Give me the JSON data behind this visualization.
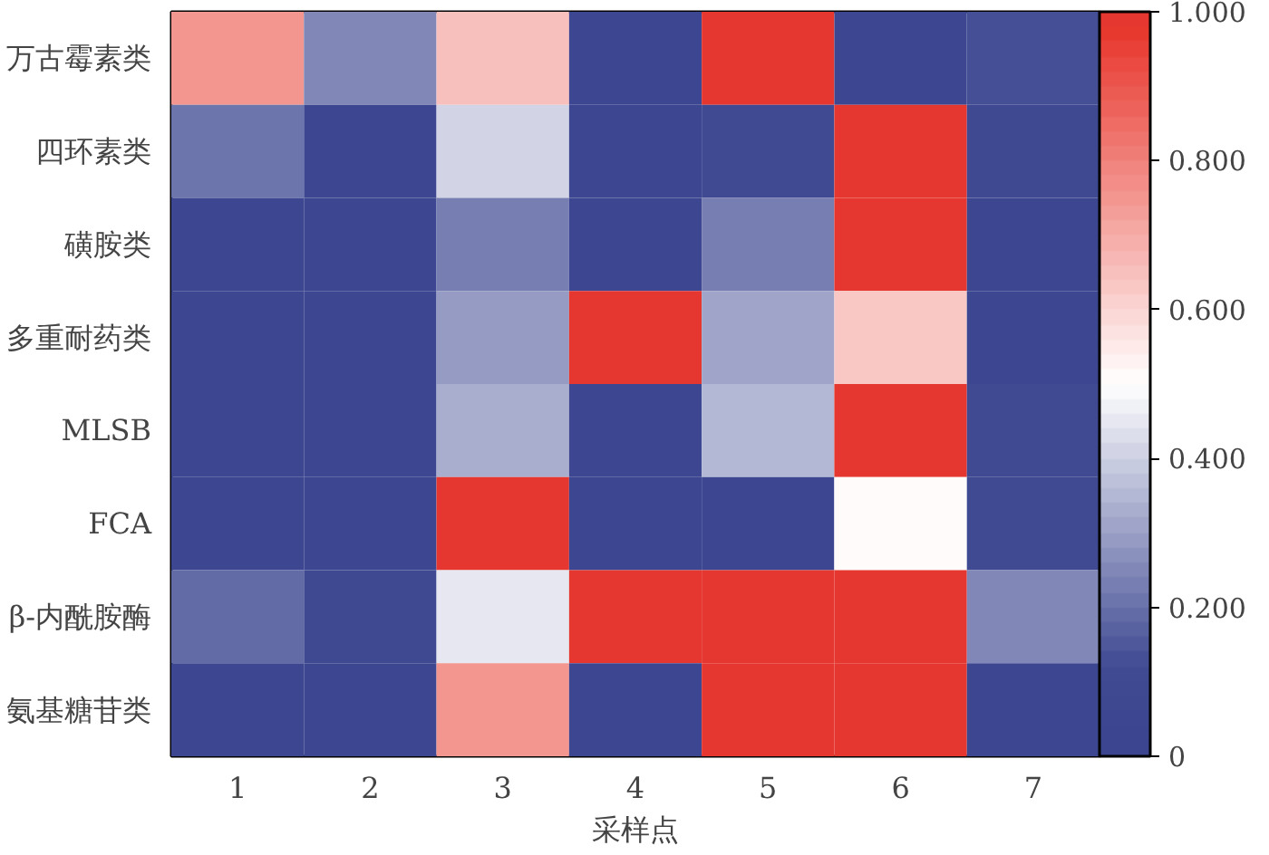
{
  "chart_data": {
    "type": "heatmap",
    "xlabel": "采样点",
    "categories": [
      "1",
      "2",
      "3",
      "4",
      "5",
      "6",
      "7"
    ],
    "y_categories": [
      "万古霉素类",
      "四环素类",
      "磺胺类",
      "多重耐药类",
      "MLSB",
      "FCA",
      "β-内酰胺酶",
      "氨基糖苷类"
    ],
    "cells": [
      [
        0.75,
        0.25,
        0.65,
        0.05,
        0.98,
        0.05,
        0.12
      ],
      [
        0.2,
        0.05,
        0.4,
        0.05,
        0.1,
        0.98,
        0.08
      ],
      [
        0.05,
        0.05,
        0.22,
        0.05,
        0.22,
        0.98,
        0.05
      ],
      [
        0.05,
        0.05,
        0.28,
        0.98,
        0.3,
        0.62,
        0.05
      ],
      [
        0.05,
        0.05,
        0.33,
        0.05,
        0.35,
        0.98,
        0.1
      ],
      [
        0.05,
        0.05,
        0.98,
        0.05,
        0.05,
        0.5,
        0.1
      ],
      [
        0.18,
        0.08,
        0.45,
        0.98,
        0.98,
        0.98,
        0.25
      ],
      [
        0.05,
        0.05,
        0.75,
        0.05,
        0.98,
        0.98,
        0.05
      ]
    ],
    "clim": [
      0,
      1
    ],
    "cticks": [
      0,
      {
        "value": 0.2,
        "label": "0.200"
      },
      {
        "value": 0.4,
        "label": "0.400"
      },
      {
        "value": 0.6,
        "label": "0.600"
      },
      {
        "value": 0.8,
        "label": "0.800"
      },
      {
        "value": 1,
        "label": "1.000"
      }
    ]
  }
}
